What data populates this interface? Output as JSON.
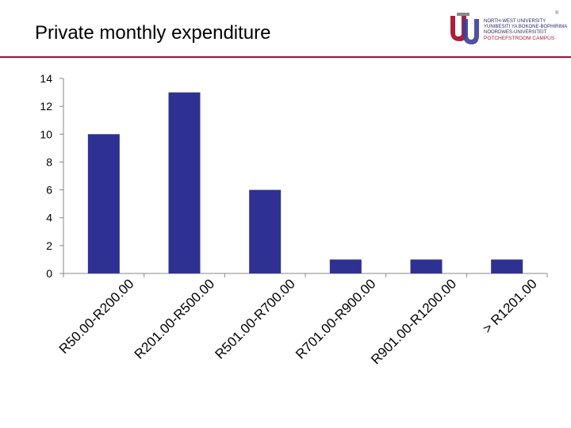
{
  "header": {
    "title": "Private monthly expenditure"
  },
  "logo": {
    "line1": "NORTH-WEST UNIVERSITY",
    "line2": "YUNIBESITI YA BOKONE-BOPHIRIMA",
    "line3": "NOORDWES-UNIVERSITEIT",
    "line4": "POTCHEFSTROOM CAMPUS",
    "reg_mark": "®"
  },
  "colors": {
    "bar": "#2e3192",
    "accent": "#8b1a3a",
    "axis": "#888888"
  },
  "chart_data": {
    "type": "bar",
    "title": "Private monthly expenditure",
    "xlabel": "",
    "ylabel": "",
    "categories": [
      "R50.00-R200.00",
      "R201.00-R500.00",
      "R501.00-R700.00",
      "R701.00-R900.00",
      "R901.00-R1200.00",
      "> R1201.00"
    ],
    "values": [
      10,
      13,
      6,
      1,
      1,
      1
    ],
    "ylim": [
      0,
      14
    ],
    "yticks": [
      0,
      2,
      4,
      6,
      8,
      10,
      12,
      14
    ],
    "grid": false,
    "legend": "none"
  }
}
